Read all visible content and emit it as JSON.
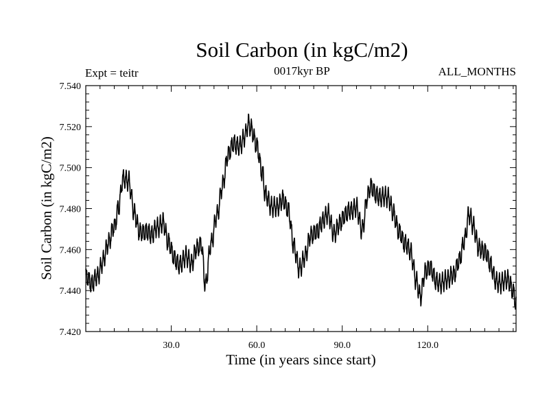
{
  "chart_data": {
    "type": "line",
    "title": "Soil Carbon (in kgC/m2)",
    "subtitle": "0017kyr BP",
    "left_label": "Expt = teitr",
    "right_label": "ALL_MONTHS",
    "xlabel": "Time (in years since start)",
    "ylabel": "Soil Carbon (in kgC/m2)",
    "xlim": [
      0,
      151
    ],
    "ylim": [
      7.42,
      7.54
    ],
    "xticks": [
      30,
      60,
      90,
      120
    ],
    "xtick_labels": [
      "30.0",
      "60.0",
      "90.0",
      "120.0"
    ],
    "yticks": [
      7.42,
      7.44,
      7.46,
      7.48,
      7.5,
      7.52,
      7.54
    ],
    "ytick_labels": [
      "7.420",
      "7.440",
      "7.460",
      "7.480",
      "7.500",
      "7.520",
      "7.540"
    ],
    "seasonal_amplitude": 0.004,
    "series": [
      {
        "name": "Soil Carbon",
        "anchors_x": [
          0,
          2,
          4,
          6,
          8,
          10,
          11.5,
          13,
          15,
          17,
          19,
          21,
          23,
          25,
          27,
          29,
          31,
          33,
          35,
          37,
          39,
          40.5,
          42,
          44,
          46,
          48,
          50,
          52,
          54,
          56,
          57,
          58,
          60,
          62,
          63,
          65,
          67,
          69,
          71,
          73,
          75,
          77,
          79,
          81,
          83,
          85,
          87,
          89,
          91,
          93,
          95,
          97,
          99,
          100,
          102,
          104,
          106,
          108,
          110,
          112,
          114,
          116,
          117.5,
          119,
          121,
          123,
          125,
          127,
          129,
          131,
          133,
          134.5,
          136,
          138,
          140,
          142,
          144,
          146,
          148,
          150,
          151
        ],
        "anchors_y": [
          7.446,
          7.442,
          7.448,
          7.455,
          7.462,
          7.471,
          7.482,
          7.495,
          7.492,
          7.478,
          7.47,
          7.468,
          7.466,
          7.472,
          7.474,
          7.462,
          7.456,
          7.454,
          7.456,
          7.452,
          7.462,
          7.464,
          7.442,
          7.462,
          7.478,
          7.492,
          7.505,
          7.512,
          7.512,
          7.515,
          7.52,
          7.518,
          7.512,
          7.498,
          7.486,
          7.48,
          7.482,
          7.485,
          7.478,
          7.462,
          7.452,
          7.456,
          7.466,
          7.47,
          7.474,
          7.476,
          7.468,
          7.474,
          7.476,
          7.478,
          7.482,
          7.47,
          7.485,
          7.49,
          7.488,
          7.486,
          7.484,
          7.478,
          7.47,
          7.462,
          7.458,
          7.446,
          7.438,
          7.448,
          7.45,
          7.446,
          7.444,
          7.444,
          7.448,
          7.456,
          7.464,
          7.476,
          7.472,
          7.462,
          7.458,
          7.452,
          7.446,
          7.444,
          7.444,
          7.44,
          7.435
        ]
      }
    ]
  }
}
